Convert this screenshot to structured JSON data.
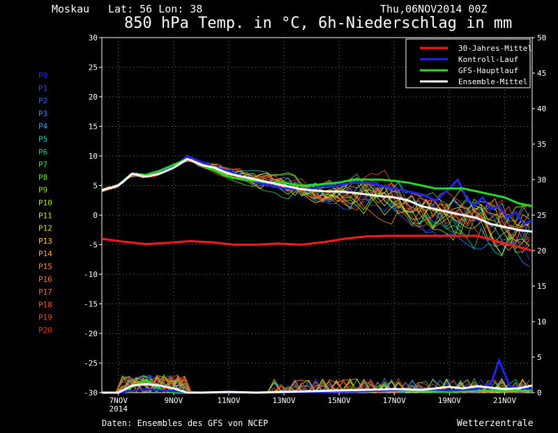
{
  "header": {
    "location": "Moskau",
    "coords": "Lat: 56 Lon: 38",
    "date": "Thu,06NOV2014 00Z",
    "title": "850 hPa Temp. in °C, 6h-Niederschlag in mm"
  },
  "footer": {
    "source": "Daten: Ensembles des GFS von NCEP",
    "brand": "Wetterzentrale"
  },
  "members": [
    {
      "label": "P0",
      "color": "#2a2aff"
    },
    {
      "label": "P1",
      "color": "#1f4fff"
    },
    {
      "label": "P2",
      "color": "#2266ff"
    },
    {
      "label": "P3",
      "color": "#2a8cff"
    },
    {
      "label": "P4",
      "color": "#22aaff"
    },
    {
      "label": "P5",
      "color": "#22cccc"
    },
    {
      "label": "P6",
      "color": "#22cc88"
    },
    {
      "label": "P7",
      "color": "#44dd44"
    },
    {
      "label": "P8",
      "color": "#66ee22"
    },
    {
      "label": "P9",
      "color": "#88ee22"
    },
    {
      "label": "P10",
      "color": "#aaee22"
    },
    {
      "label": "P11",
      "color": "#ccee22"
    },
    {
      "label": "P12",
      "color": "#eedd22"
    },
    {
      "label": "P13",
      "color": "#ffcc22"
    },
    {
      "label": "P14",
      "color": "#ffaa22"
    },
    {
      "label": "P15",
      "color": "#ff8c22"
    },
    {
      "label": "P16",
      "color": "#ff7722"
    },
    {
      "label": "P17",
      "color": "#ff6622"
    },
    {
      "label": "P18",
      "color": "#ff5522"
    },
    {
      "label": "P19",
      "color": "#ff4422"
    },
    {
      "label": "P20",
      "color": "#ee3311"
    }
  ],
  "chart_data": {
    "type": "line",
    "xlim": [
      6.4,
      22.0
    ],
    "ylim": [
      -30,
      30
    ],
    "y2lim": [
      0,
      50
    ],
    "x_ticks": [
      {
        "x": 7,
        "label": "7NOV",
        "sublabel": "2014"
      },
      {
        "x": 9,
        "label": "9NOV"
      },
      {
        "x": 11,
        "label": "11NOV"
      },
      {
        "x": 13,
        "label": "13NOV"
      },
      {
        "x": 15,
        "label": "15NOV"
      },
      {
        "x": 17,
        "label": "17NOV"
      },
      {
        "x": 19,
        "label": "19NOV"
      },
      {
        "x": 21,
        "label": "21NOV"
      }
    ],
    "y_ticks": [
      -30,
      -25,
      -20,
      -15,
      -10,
      -5,
      0,
      5,
      10,
      15,
      20,
      25,
      30
    ],
    "y2_ticks": [
      0,
      5,
      10,
      15,
      20,
      25,
      30,
      35,
      40,
      45,
      50
    ],
    "grid": true,
    "legend_position": "top-right",
    "legend": [
      {
        "name": "30-Jahres-Mittel",
        "color": "#ff1a1a"
      },
      {
        "name": "Kontroll-Lauf",
        "color": "#2222ff"
      },
      {
        "name": "GFS-Hauptlauf",
        "color": "#22dd22"
      },
      {
        "name": "Ensemble-Mittel",
        "color": "#ffffff"
      }
    ],
    "series": [
      {
        "name": "30-Jahres-Mittel",
        "color": "#ff1a1a",
        "width": 3,
        "x": [
          6.4,
          7.2,
          8.0,
          8.8,
          9.6,
          10.4,
          11.2,
          12.0,
          12.8,
          13.6,
          14.4,
          15.2,
          16.0,
          16.8,
          17.6,
          18.4,
          19.2,
          20.0,
          20.8,
          21.6,
          22.0
        ],
        "y": [
          -4.0,
          -4.5,
          -4.9,
          -4.7,
          -4.4,
          -4.6,
          -5.0,
          -5.0,
          -4.8,
          -5.0,
          -4.6,
          -4.0,
          -3.6,
          -3.5,
          -3.5,
          -3.5,
          -3.5,
          -3.5,
          -4.5,
          -5.5,
          -6.0
        ]
      },
      {
        "name": "Kontroll-Lauf",
        "color": "#2222ff",
        "width": 3,
        "x": [
          6.4,
          7.0,
          7.5,
          8.0,
          8.5,
          9.0,
          9.5,
          10.0,
          10.5,
          11.0,
          11.5,
          12.0,
          12.5,
          13.0,
          13.5,
          14.0,
          14.5,
          15.0,
          15.5,
          16.0,
          16.5,
          17.0,
          17.5,
          18.0,
          18.5,
          19.0,
          19.3,
          19.6,
          19.9,
          20.2,
          20.5,
          20.8,
          21.1,
          21.4,
          21.7,
          22.0
        ],
        "y": [
          4.2,
          5.0,
          7.0,
          6.5,
          7.5,
          8.0,
          10.0,
          9.0,
          8.0,
          7.5,
          6.5,
          5.5,
          5.0,
          4.5,
          4.5,
          4.5,
          5.0,
          5.0,
          5.5,
          5.5,
          5.0,
          4.5,
          4.0,
          3.5,
          2.5,
          4.5,
          6.0,
          3.0,
          1.5,
          3.0,
          1.0,
          1.5,
          -0.5,
          0.5,
          -1.5,
          -1.0
        ]
      },
      {
        "name": "GFS-Hauptlauf",
        "color": "#22dd22",
        "width": 3,
        "x": [
          6.4,
          7.0,
          7.5,
          8.0,
          8.5,
          9.0,
          9.5,
          10.0,
          10.5,
          11.0,
          11.5,
          12.0,
          12.5,
          13.0,
          13.5,
          14.0,
          14.5,
          15.0,
          15.5,
          16.0,
          16.5,
          17.0,
          17.5,
          18.0,
          18.5,
          19.0,
          19.5,
          20.0,
          20.5,
          21.0,
          21.5,
          22.0
        ],
        "y": [
          4.2,
          5.0,
          7.0,
          6.8,
          7.5,
          8.5,
          9.5,
          8.5,
          7.5,
          6.5,
          6.0,
          5.8,
          5.5,
          5.5,
          5.0,
          5.0,
          5.3,
          5.5,
          6.0,
          6.0,
          6.0,
          5.8,
          5.5,
          5.0,
          4.5,
          4.5,
          4.5,
          4.0,
          3.5,
          3.0,
          2.0,
          1.5
        ]
      },
      {
        "name": "Ensemble-Mittel",
        "color": "#ffffff",
        "width": 3,
        "x": [
          6.4,
          7.0,
          7.5,
          8.0,
          8.5,
          9.0,
          9.5,
          10.0,
          10.5,
          11.0,
          11.5,
          12.0,
          12.5,
          13.0,
          13.5,
          14.0,
          14.5,
          15.0,
          15.5,
          16.0,
          16.5,
          17.0,
          17.5,
          18.0,
          18.5,
          19.0,
          19.5,
          20.0,
          20.5,
          21.0,
          21.5,
          22.0
        ],
        "y": [
          4.2,
          5.0,
          7.0,
          6.5,
          7.0,
          8.0,
          9.5,
          8.5,
          8.0,
          7.0,
          6.5,
          6.0,
          5.5,
          5.0,
          4.5,
          4.2,
          4.0,
          4.0,
          3.8,
          3.5,
          3.2,
          3.0,
          2.5,
          1.5,
          1.0,
          0.5,
          0.0,
          -0.5,
          -1.5,
          -2.0,
          -2.5,
          -2.8
        ]
      }
    ],
    "precip_mean": {
      "x": [
        6.4,
        7.0,
        7.5,
        8.0,
        8.5,
        9.0,
        9.5,
        10.0,
        11.0,
        12.0,
        13.0,
        14.0,
        15.0,
        16.0,
        17.0,
        18.0,
        18.5,
        19.0,
        19.5,
        20.0,
        20.5,
        21.0,
        21.5,
        22.0
      ],
      "y": [
        0.0,
        0.0,
        1.0,
        1.2,
        1.0,
        0.6,
        0.0,
        0.0,
        0.1,
        0.0,
        0.1,
        0.2,
        0.3,
        0.4,
        0.5,
        0.4,
        0.6,
        0.8,
        0.6,
        0.9,
        0.7,
        0.5,
        0.6,
        1.0
      ]
    },
    "precip_gfs": {
      "x": [
        6.4,
        7.0,
        7.5,
        8.0,
        8.5,
        9.0,
        9.5,
        10.0,
        12.0,
        14.0,
        16.0,
        18.0,
        19.0,
        20.0,
        21.0,
        22.0
      ],
      "y": [
        0.0,
        0.0,
        0.8,
        1.8,
        0.5,
        0.0,
        0.0,
        0.0,
        0.0,
        0.2,
        0.3,
        0.2,
        0.1,
        0.3,
        0.2,
        0.3
      ]
    },
    "precip_control": {
      "x": [
        6.4,
        7.0,
        8.0,
        9.0,
        10.0,
        12.0,
        14.0,
        16.0,
        18.0,
        19.0,
        20.0,
        20.5,
        20.8,
        21.2,
        22.0
      ],
      "y": [
        0.0,
        0.0,
        0.5,
        0.2,
        0.0,
        0.0,
        0.1,
        0.2,
        0.5,
        0.3,
        0.5,
        1.2,
        4.5,
        0.8,
        0.5
      ]
    }
  }
}
